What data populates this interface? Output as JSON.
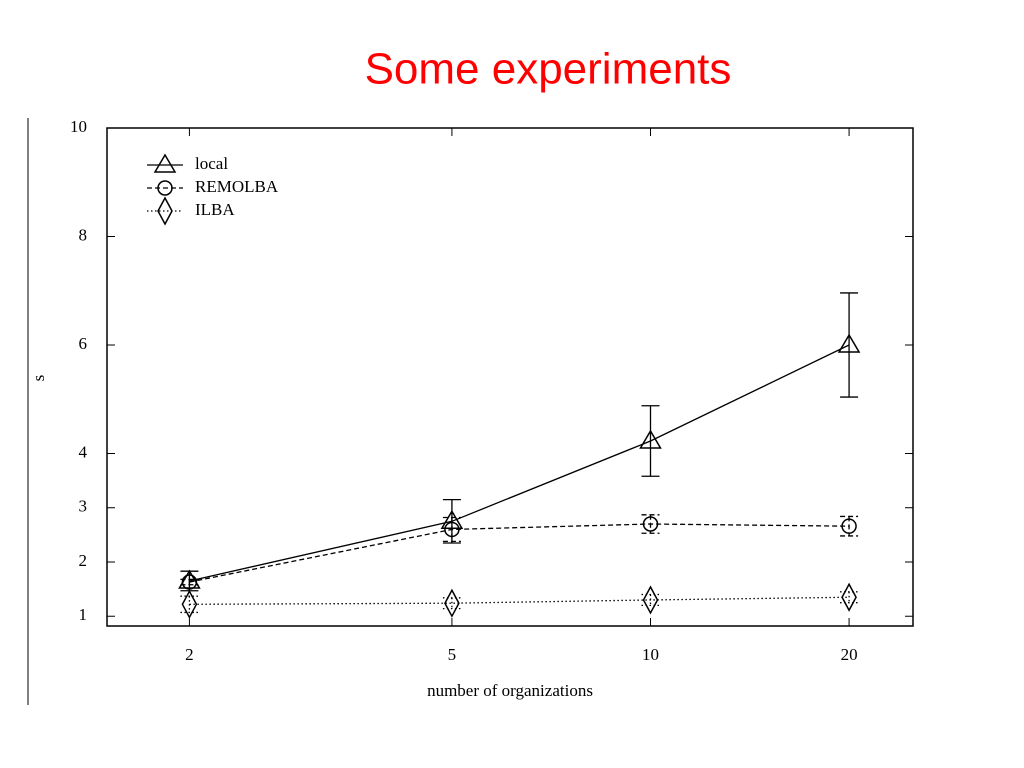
{
  "chart_data": {
    "type": "line",
    "title": "Some experiments",
    "x_label": "number of organizations",
    "y_label": "s",
    "x": [
      2,
      5,
      10,
      20
    ],
    "xlim": [
      1.5,
      25
    ],
    "xticks": [
      2,
      5,
      10,
      20
    ],
    "x_scale": "log",
    "ylim": [
      0.82,
      10
    ],
    "yticks": [
      1,
      2,
      3,
      4,
      6,
      8,
      10
    ],
    "legend": "top-left",
    "series": [
      {
        "name": "local",
        "color": "#000000",
        "dash": "solid",
        "marker": "triangle",
        "values": [
          1.65,
          2.75,
          4.23,
          6.0
        ],
        "errors": [
          0.18,
          0.4,
          0.65,
          0.96
        ]
      },
      {
        "name": "REMOLBA",
        "color": "#000000",
        "dash": "dashed",
        "marker": "circle",
        "values": [
          1.63,
          2.6,
          2.7,
          2.66
        ],
        "errors": [
          0.05,
          0.22,
          0.17,
          0.18
        ]
      },
      {
        "name": "ILBA",
        "color": "#000000",
        "dash": "dotted",
        "marker": "diamond",
        "values": [
          1.22,
          1.24,
          1.3,
          1.35
        ],
        "errors": [
          0.15,
          0.1,
          0.1,
          0.1
        ]
      }
    ]
  }
}
